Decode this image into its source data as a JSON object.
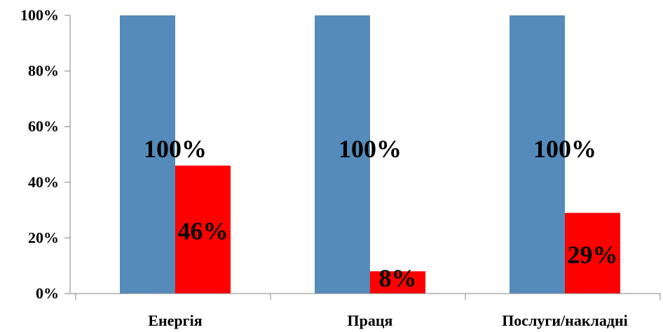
{
  "chart_data": {
    "type": "bar",
    "categories": [
      "Енергія",
      "Праця",
      "Послуги/накладні"
    ],
    "series": [
      {
        "values": [
          100,
          100,
          100
        ],
        "color": "#558BBB",
        "labels": [
          "100%",
          "100%",
          "100%"
        ]
      },
      {
        "values": [
          46,
          8,
          29
        ],
        "color": "#FF0000",
        "labels": [
          "46%",
          "8%",
          "29%"
        ]
      }
    ],
    "yticks": [
      "0%",
      "20%",
      "40%",
      "60%",
      "80%",
      "100%"
    ],
    "ylim": [
      0,
      100
    ],
    "grid": false,
    "legend": "none"
  }
}
